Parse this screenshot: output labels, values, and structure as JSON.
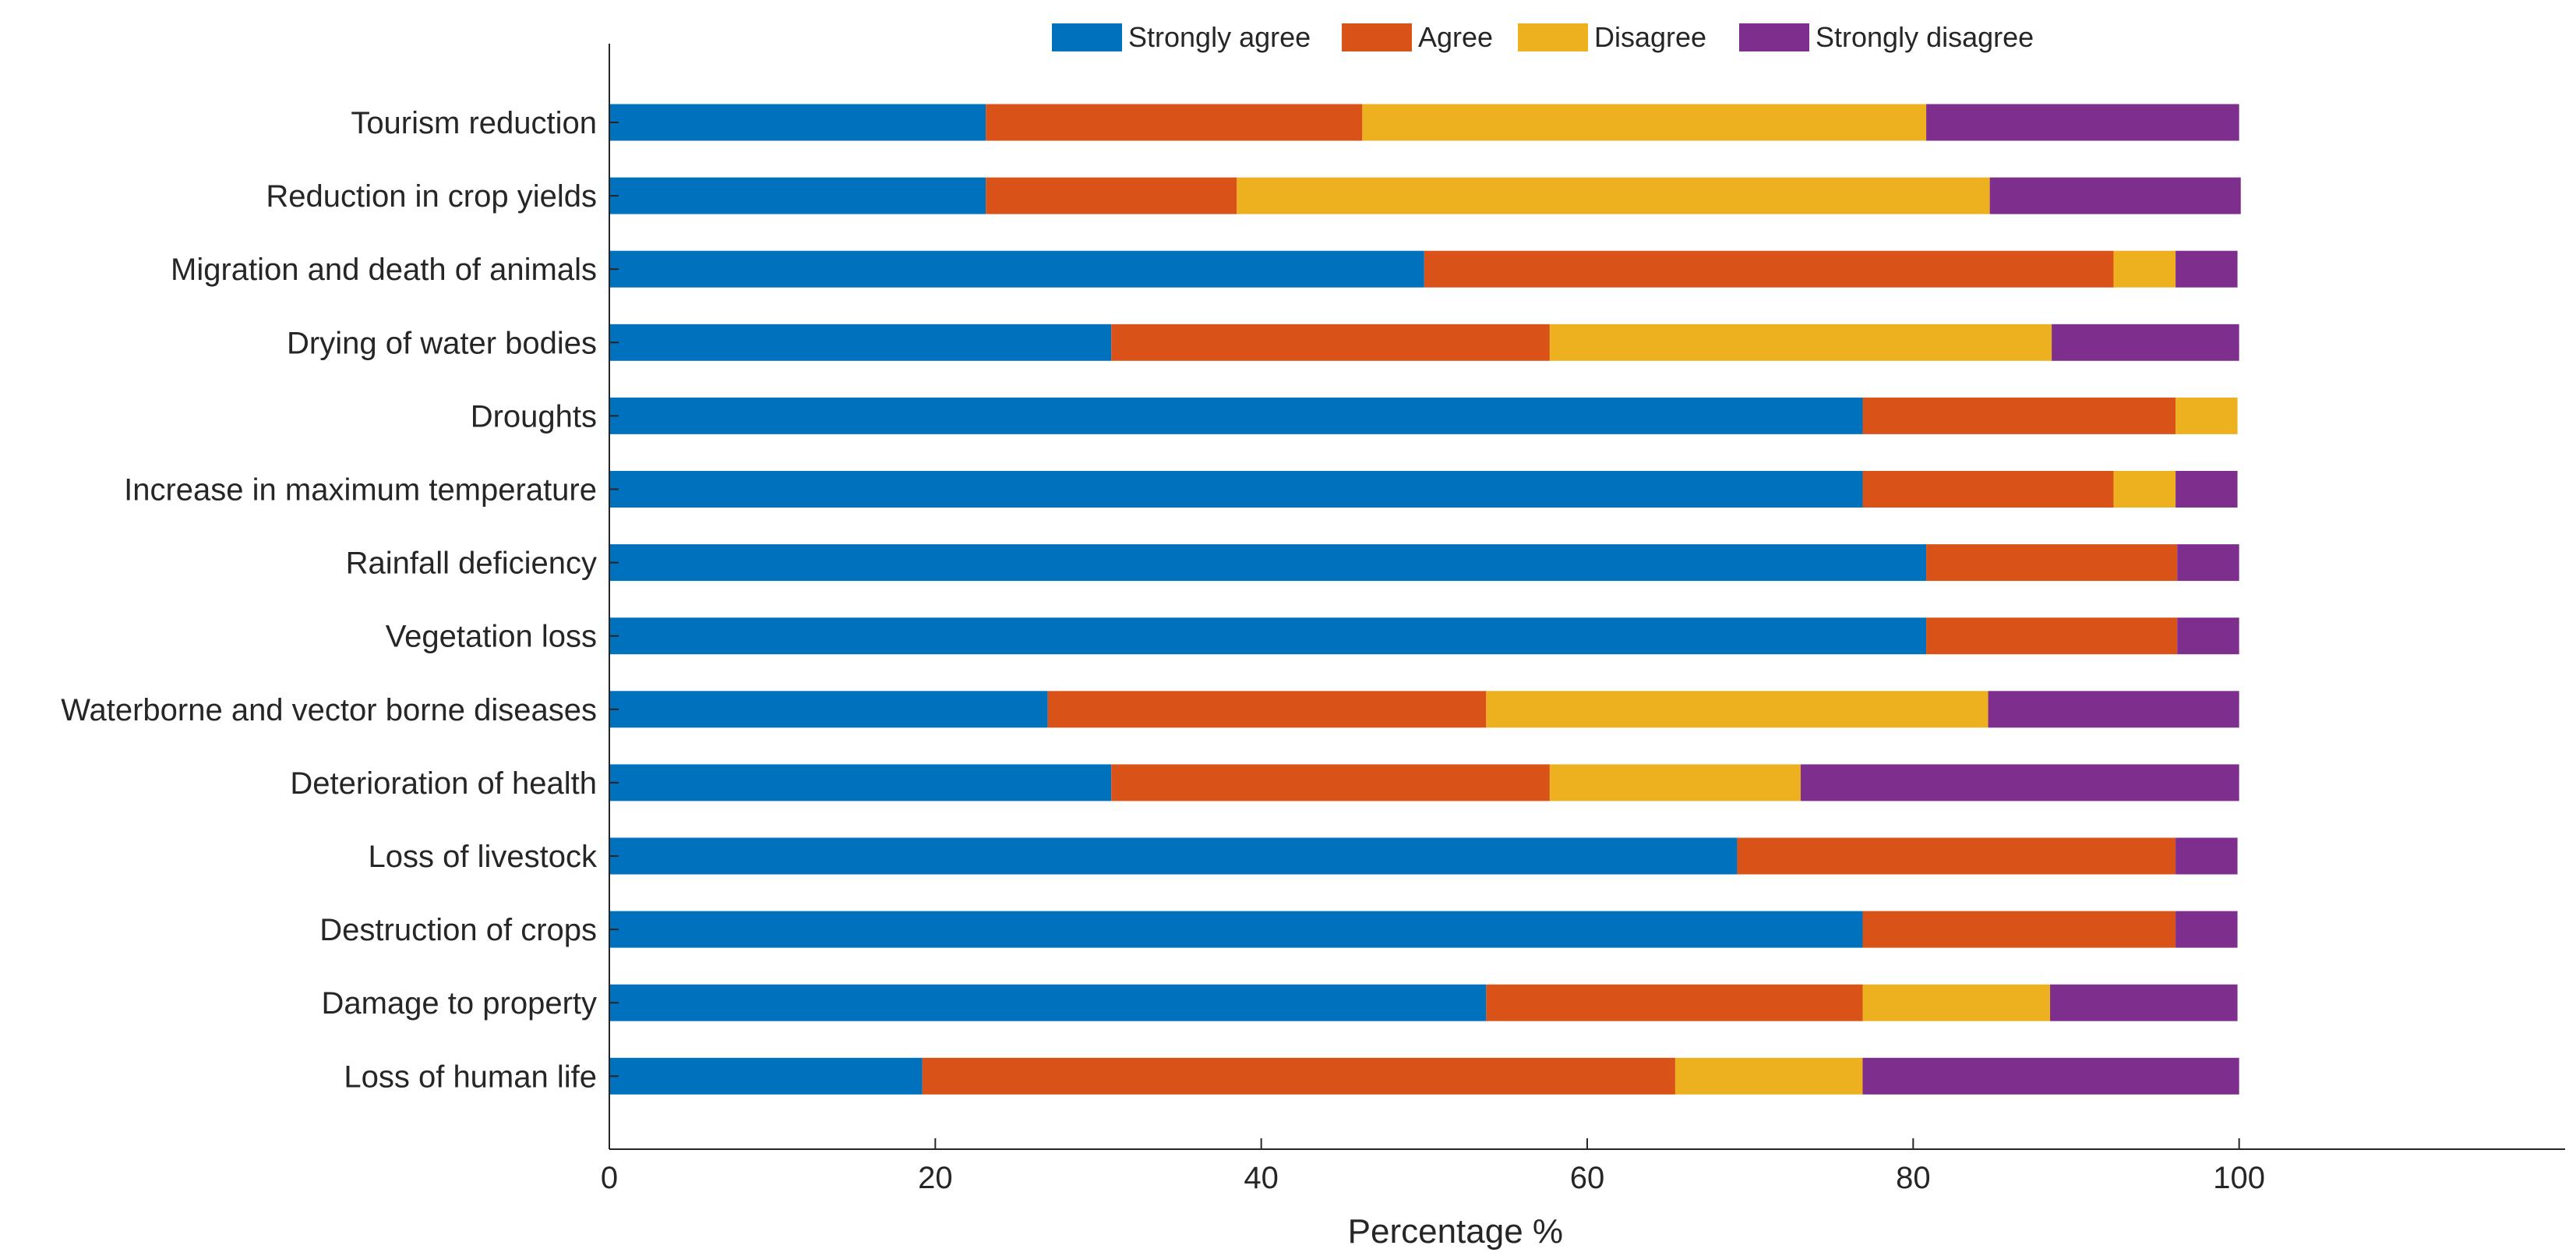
{
  "chart_data": {
    "type": "bar",
    "orientation": "horizontal",
    "stacked": true,
    "title": "",
    "xlabel": "Percentage %",
    "ylabel": "",
    "xlim": [
      0,
      120
    ],
    "xticks": [
      0,
      20,
      40,
      60,
      80,
      100
    ],
    "grid": false,
    "legend_position": "top",
    "categories": [
      "Tourism reduction",
      "Reduction in crop yields",
      "Migration and death of animals",
      "Drying of water bodies",
      "Droughts",
      "Increase in maximum temperature",
      "Rainfall deficiency",
      "Vegetation loss",
      "Waterborne and vector borne diseases",
      "Deterioration of health",
      "Loss of livestock",
      "Destruction of crops",
      "Damage to property",
      "Loss of human life"
    ],
    "series": [
      {
        "name": "Strongly agree",
        "color": "#0072BD",
        "values": [
          23.1,
          23.1,
          50.0,
          30.8,
          76.9,
          76.9,
          80.8,
          80.8,
          26.9,
          30.8,
          69.2,
          76.9,
          53.8,
          19.2
        ]
      },
      {
        "name": "Agree",
        "color": "#D95319",
        "values": [
          23.1,
          15.4,
          42.3,
          26.9,
          19.2,
          15.4,
          15.4,
          15.4,
          26.9,
          26.9,
          26.9,
          19.2,
          23.1,
          46.2
        ]
      },
      {
        "name": "Disagree",
        "color": "#EDB120",
        "values": [
          34.6,
          46.2,
          3.8,
          30.8,
          3.8,
          3.8,
          0,
          0,
          30.8,
          15.4,
          0,
          0,
          11.5,
          11.5
        ]
      },
      {
        "name": "Strongly disagree",
        "color": "#7E2F8E",
        "values": [
          19.2,
          15.4,
          3.8,
          11.5,
          0,
          3.8,
          3.8,
          3.8,
          15.4,
          26.9,
          3.8,
          3.8,
          11.5,
          23.1
        ]
      }
    ]
  }
}
